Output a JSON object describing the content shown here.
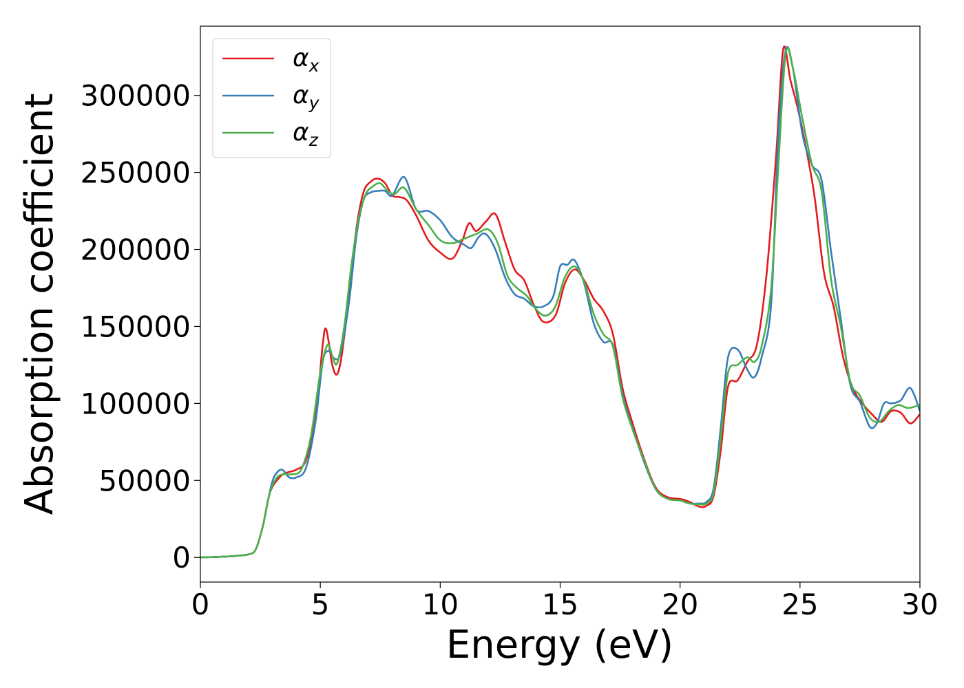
{
  "chart_data": {
    "type": "line",
    "title": "",
    "xlabel": "Energy (eV)",
    "ylabel": "Absorption coefficient",
    "xlim": [
      0,
      30
    ],
    "ylim": [
      -16000,
      345000
    ],
    "xticks": [
      0,
      5,
      10,
      15,
      20,
      25,
      30
    ],
    "yticks": [
      0,
      50000,
      100000,
      150000,
      200000,
      250000,
      300000
    ],
    "grid": false,
    "legend_position": "top-left",
    "series": [
      {
        "name": "α_x",
        "label_base": "α",
        "label_sub": "x",
        "color": "#e41a1c",
        "x": [
          0,
          1,
          1.5,
          2,
          2.3,
          2.6,
          2.9,
          3.3,
          3.6,
          4,
          4.4,
          4.8,
          5.1,
          5.25,
          5.5,
          5.7,
          5.9,
          6.2,
          6.5,
          6.8,
          7.1,
          7.4,
          7.7,
          8,
          8.3,
          8.6,
          9,
          9.5,
          10,
          10.5,
          10.9,
          11.2,
          11.5,
          11.9,
          12.3,
          12.7,
          13.1,
          13.5,
          13.9,
          14.3,
          14.8,
          15.2,
          15.6,
          16,
          16.4,
          16.8,
          17.2,
          17.6,
          18,
          18.5,
          19,
          19.5,
          20,
          20.4,
          20.8,
          21.1,
          21.4,
          21.7,
          22,
          22.4,
          22.8,
          23.2,
          23.6,
          24,
          24.3,
          24.6,
          24.9,
          25.2,
          25.6,
          26,
          26.4,
          26.8,
          27.2,
          27.6,
          28,
          28.4,
          28.8,
          29.2,
          29.6,
          30
        ],
        "y": [
          0,
          500,
          1000,
          2000,
          5000,
          20000,
          42000,
          52000,
          55000,
          57000,
          63000,
          90000,
          138000,
          148000,
          125000,
          119000,
          132000,
          170000,
          213000,
          237000,
          244000,
          246000,
          243000,
          235000,
          234000,
          232000,
          222000,
          206000,
          198000,
          194000,
          205000,
          217000,
          212000,
          218000,
          223000,
          205000,
          187000,
          180000,
          164000,
          153000,
          157000,
          178000,
          187000,
          180000,
          168000,
          160000,
          145000,
          110000,
          88000,
          64000,
          45000,
          39000,
          38000,
          36000,
          33000,
          33500,
          40000,
          70000,
          111000,
          115000,
          127000,
          138000,
          183000,
          260000,
          330000,
          310000,
          292000,
          270000,
          235000,
          185000,
          163000,
          130000,
          110000,
          100000,
          93000,
          88000,
          95000,
          94000,
          87000,
          93000
        ]
      },
      {
        "name": "α_y",
        "label_base": "α",
        "label_sub": "y",
        "color": "#377eb8",
        "x": [
          0,
          1,
          1.5,
          2,
          2.3,
          2.6,
          2.9,
          3.1,
          3.4,
          3.7,
          4,
          4.4,
          4.8,
          5.1,
          5.35,
          5.6,
          5.85,
          6.2,
          6.5,
          6.8,
          7.1,
          7.4,
          7.7,
          8,
          8.5,
          9,
          9.5,
          10,
          10.5,
          11,
          11.3,
          11.6,
          11.9,
          12.3,
          12.7,
          13.1,
          13.5,
          13.9,
          14.3,
          14.7,
          15,
          15.3,
          15.6,
          16,
          16.4,
          16.8,
          17.2,
          17.6,
          18,
          18.5,
          19,
          19.5,
          20,
          20.4,
          20.8,
          21.1,
          21.4,
          21.7,
          22,
          22.4,
          22.8,
          23.1,
          23.4,
          23.8,
          24.1,
          24.4,
          24.7,
          25.1,
          25.5,
          25.9,
          26.3,
          26.7,
          27.1,
          27.5,
          27.9,
          28.2,
          28.5,
          28.8,
          29.2,
          29.6,
          30
        ],
        "y": [
          0,
          500,
          1000,
          2000,
          5000,
          20000,
          43000,
          53000,
          57000,
          52000,
          52000,
          58000,
          88000,
          127000,
          134000,
          129000,
          133000,
          166000,
          208000,
          232000,
          237000,
          238000,
          238000,
          235000,
          247000,
          226000,
          225000,
          219000,
          208000,
          203000,
          201000,
          208000,
          210000,
          200000,
          182000,
          171000,
          168000,
          163000,
          163000,
          169000,
          189000,
          190000,
          193000,
          178000,
          152000,
          140000,
          138000,
          106000,
          85000,
          62000,
          44000,
          38000,
          37000,
          35000,
          35000,
          36000,
          45000,
          85000,
          130000,
          135000,
          122000,
          117000,
          130000,
          165000,
          275000,
          329000,
          318000,
          275000,
          255000,
          245000,
          198000,
          155000,
          112000,
          101000,
          85000,
          87000,
          100000,
          100000,
          102000,
          110000,
          95000
        ]
      },
      {
        "name": "α_z",
        "label_base": "α",
        "label_sub": "z",
        "color": "#4daf4a",
        "x": [
          0,
          1,
          1.5,
          2,
          2.3,
          2.6,
          2.9,
          3.2,
          3.5,
          3.8,
          4.2,
          4.6,
          5,
          5.3,
          5.5,
          5.7,
          6,
          6.3,
          6.6,
          6.9,
          7.2,
          7.5,
          7.8,
          8.1,
          8.5,
          9,
          9.5,
          10,
          10.5,
          11,
          11.5,
          12,
          12.4,
          12.8,
          13.2,
          13.6,
          14,
          14.4,
          14.8,
          15.2,
          15.6,
          16,
          16.4,
          16.8,
          17.2,
          17.6,
          18,
          18.5,
          19,
          19.5,
          20,
          20.4,
          20.8,
          21.1,
          21.4,
          21.7,
          22,
          22.4,
          22.8,
          23.1,
          23.4,
          23.8,
          24.1,
          24.4,
          24.7,
          25.1,
          25.5,
          25.9,
          26.3,
          26.7,
          27.1,
          27.5,
          27.9,
          28.3,
          28.7,
          29.1,
          29.5,
          30
        ],
        "y": [
          0,
          500,
          1000,
          2000,
          5000,
          20000,
          42000,
          52000,
          54000,
          54000,
          57000,
          78000,
          120000,
          138000,
          131000,
          126000,
          150000,
          190000,
          220000,
          236000,
          241000,
          243000,
          238000,
          236000,
          240000,
          226000,
          216000,
          206000,
          204000,
          207000,
          210000,
          213000,
          204000,
          183000,
          175000,
          170000,
          161000,
          157000,
          163000,
          182000,
          189000,
          179000,
          158000,
          145000,
          137000,
          104000,
          84000,
          63000,
          44000,
          38000,
          37000,
          35000,
          34500,
          35000,
          42000,
          78000,
          120000,
          125000,
          130000,
          127000,
          137000,
          175000,
          255000,
          327000,
          318000,
          285000,
          255000,
          238000,
          180000,
          150000,
          114000,
          105000,
          91000,
          88000,
          95000,
          99000,
          97000,
          99000
        ]
      }
    ]
  }
}
